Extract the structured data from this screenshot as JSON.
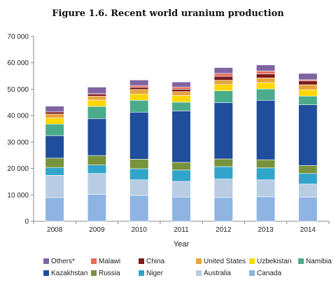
{
  "chart_data": {
    "type": "bar",
    "stacked": true,
    "title": "Figure 1.6. Recent world uranium production",
    "xlabel": "Year",
    "ylabel": "",
    "ylim": [
      0,
      70000
    ],
    "yticks": [
      "0",
      "10 000",
      "20 000",
      "30 000",
      "40 000",
      "50 000",
      "60 000",
      "70 000"
    ],
    "yticks_values": [
      0,
      10000,
      20000,
      30000,
      40000,
      50000,
      60000,
      70000
    ],
    "grid": false,
    "legend_position": "bottom",
    "categories": [
      "2008",
      "2009",
      "2010",
      "2011",
      "2012",
      "2013",
      "2014"
    ],
    "series": [
      {
        "name": "Canada",
        "color": "#8db4e2",
        "values": [
          9000,
          10200,
          9800,
          9200,
          9000,
          9300,
          9100
        ]
      },
      {
        "name": "Australia",
        "color": "#b8cce4",
        "values": [
          8400,
          7900,
          5900,
          5900,
          7000,
          6400,
          5000
        ]
      },
      {
        "name": "Niger",
        "color": "#31a5c9",
        "values": [
          3000,
          3200,
          4200,
          4300,
          4700,
          4500,
          4000
        ]
      },
      {
        "name": "Russia",
        "color": "#77933c",
        "values": [
          3500,
          3600,
          3600,
          2900,
          2900,
          3100,
          3000
        ]
      },
      {
        "name": "Kazakhstan",
        "color": "#1f4e9c",
        "values": [
          8500,
          14000,
          17800,
          19500,
          21300,
          22500,
          23000
        ]
      },
      {
        "name": "Namibia",
        "color": "#4bac8c",
        "values": [
          4400,
          4600,
          4500,
          3300,
          4500,
          4300,
          3300
        ]
      },
      {
        "name": "Uzbekistan",
        "color": "#ffd700",
        "values": [
          2300,
          2400,
          2400,
          2500,
          2400,
          2400,
          2400
        ]
      },
      {
        "name": "United States",
        "color": "#e8a33d",
        "values": [
          1500,
          1500,
          1700,
          1500,
          1600,
          1800,
          1900
        ]
      },
      {
        "name": "China",
        "color": "#7b1a1a",
        "values": [
          800,
          800,
          800,
          900,
          1500,
          1500,
          1500
        ]
      },
      {
        "name": "Malawi",
        "color": "#e36c5b",
        "values": [
          0,
          100,
          700,
          850,
          1100,
          1100,
          400
        ]
      },
      {
        "name": "Others*",
        "color": "#8064a2",
        "values": [
          2200,
          2500,
          2100,
          1900,
          2200,
          2300,
          2400
        ]
      }
    ],
    "legend_order": [
      "Others*",
      "Malawi",
      "China",
      "United States",
      "Uzbekistan",
      "Namibia",
      "Kazakhstan",
      "Russia",
      "Niger",
      "Australia",
      "Canada"
    ]
  }
}
